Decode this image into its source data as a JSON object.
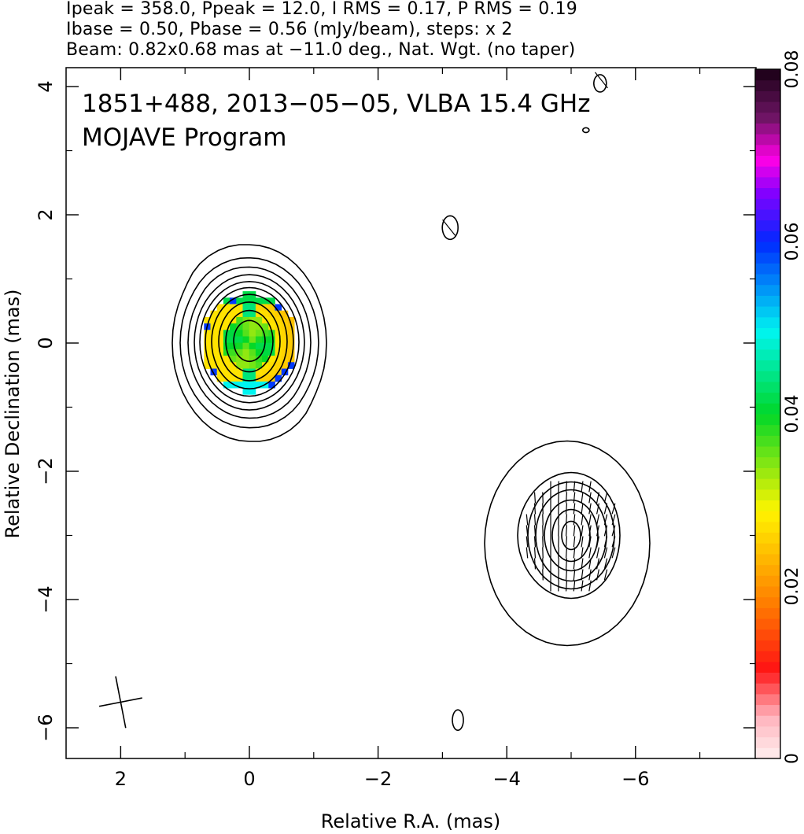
{
  "header": {
    "line1": "Ipeak = 358.0, Ppeak = 12.0, I RMS = 0.17, P RMS = 0.19",
    "line2": "Ibase = 0.50, Pbase = 0.56 (mJy/beam), steps: x 2",
    "line3": "Beam: 0.82x0.68 mas at −11.0 deg., Nat. Wgt. (no taper)"
  },
  "chart_data": {
    "type": "heatmap",
    "annotations": [
      "1851+488, 2013−05−05, VLBA 15.4 GHz",
      "MOJAVE Program"
    ],
    "xlabel": "Relative R.A. (mas)",
    "ylabel": "Relative Declination (mas)",
    "xlim": [
      3.0,
      -8.0
    ],
    "ylim": [
      -6.5,
      4.3
    ],
    "x_ticks": [
      2,
      0,
      -2,
      -4,
      -6
    ],
    "x_tick_labels": [
      "2",
      "0",
      "−2",
      "−4",
      "−6"
    ],
    "y_ticks": [
      4,
      2,
      0,
      -2,
      -4,
      -6
    ],
    "y_tick_labels": [
      "4",
      "2",
      "0",
      "−2",
      "−4",
      "−6"
    ],
    "colorbar": {
      "range": [
        0,
        0.08
      ],
      "ticks": [
        0,
        0.02,
        0.04,
        0.06,
        0.08
      ],
      "tick_labels": [
        "0",
        "0.02",
        "0.04",
        "0.06",
        "0.08"
      ]
    },
    "sources": [
      {
        "x": 0.0,
        "y": 0.0,
        "contour_levels": 10
      },
      {
        "x": -5.0,
        "y": -3.0,
        "contour_levels": 7
      }
    ],
    "beam": {
      "major_mas": 0.82,
      "minor_mas": 0.68,
      "pa_deg": -11.0
    }
  },
  "colors": {
    "axis": "#000000",
    "background": "#ffffff"
  }
}
